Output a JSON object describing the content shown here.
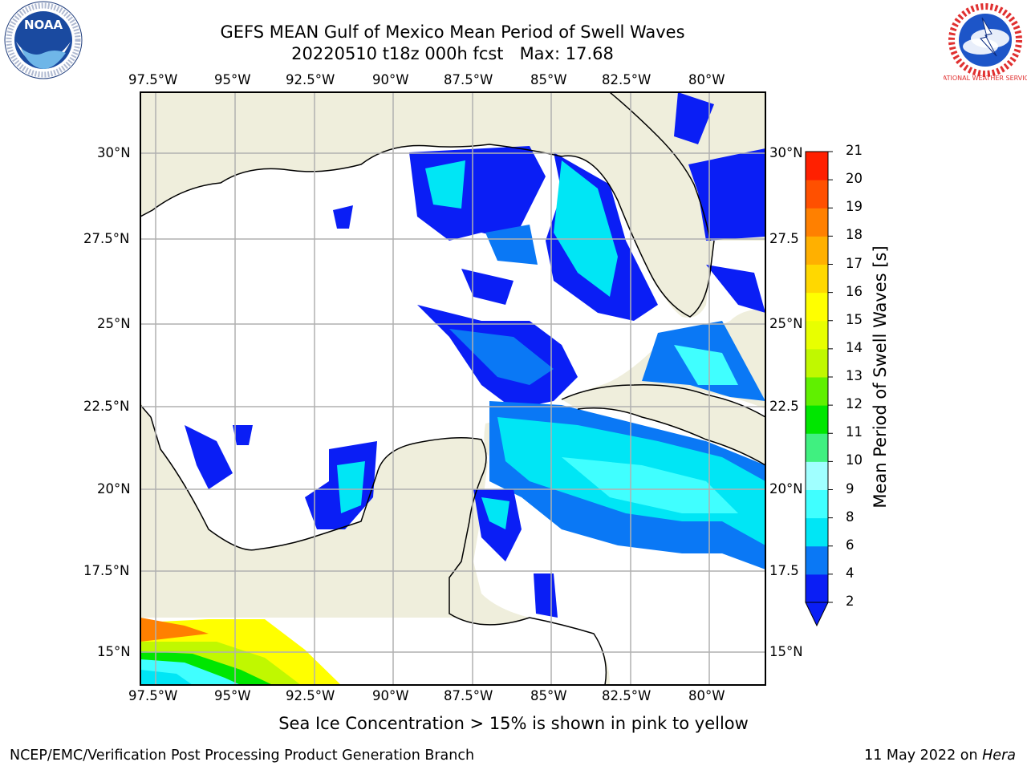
{
  "header": {
    "title_line1": "GEFS MEAN Gulf of Mexico Mean Period of Swell Waves",
    "title_line2": "20220510 t18z 000h fcst   Max: 17.68"
  },
  "logos": {
    "left": "NOAA",
    "right": "NATIONAL WEATHER SERVICE"
  },
  "map": {
    "lon_labels": [
      "97.5°W",
      "95°W",
      "92.5°W",
      "90°W",
      "87.5°W",
      "85°W",
      "82.5°W",
      "80°W"
    ],
    "lat_labels_left": [
      "30°N",
      "27.5°N",
      "25°N",
      "22.5°N",
      "20°N",
      "17.5°N",
      "15°N"
    ],
    "lat_labels_right": [
      "30°N",
      "27.5",
      "25°N",
      "22.5",
      "20°N",
      "17.5",
      "15°N"
    ],
    "colors": {
      "land": "#efeedc",
      "ocean": "#ffffff",
      "grid": "#b0b0b0"
    }
  },
  "colorbar": {
    "label": "Mean Period of Swell Waves [s]",
    "ticks": [
      "2",
      "4",
      "6",
      "8",
      "9",
      "10",
      "11",
      "12",
      "13",
      "14",
      "15",
      "16",
      "17",
      "18",
      "19",
      "20",
      "21"
    ],
    "colors": [
      "#0a1ef5",
      "#0a78f5",
      "#00e6f5",
      "#40ffff",
      "#a0ffff",
      "#40f080",
      "#00e600",
      "#60f000",
      "#c0f800",
      "#e8ff00",
      "#ffff00",
      "#ffd800",
      "#ffb000",
      "#ff8000",
      "#ff5000",
      "#ff2000"
    ]
  },
  "footer": {
    "note": "Sea Ice Concentration > 15% is shown in pink to yellow",
    "left": "NCEP/EMC/Verification Post Processing Product Generation Branch",
    "right_prefix": "11 May 2022 on ",
    "right_machine": "Hera"
  }
}
